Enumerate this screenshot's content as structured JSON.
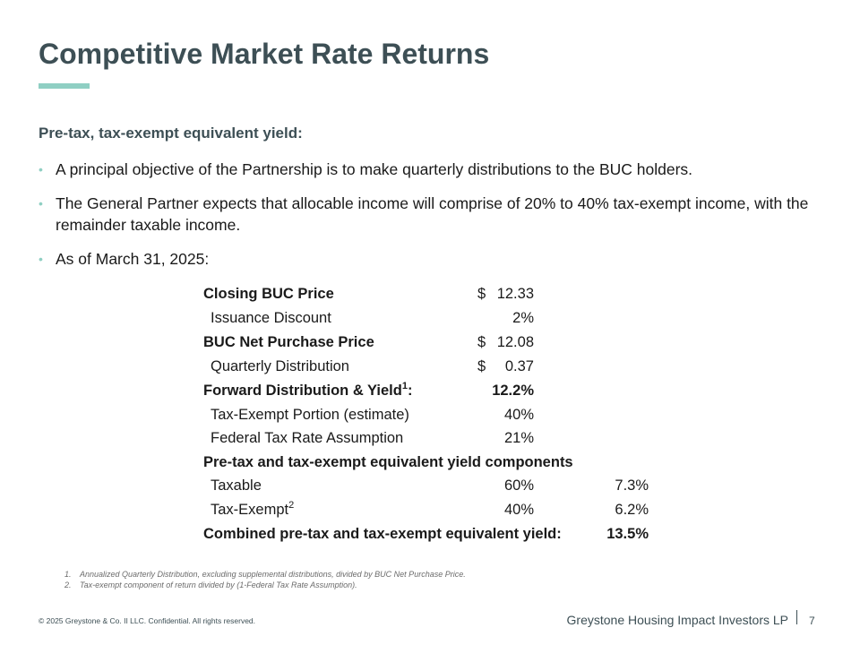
{
  "title": "Competitive Market Rate Returns",
  "accent_color": "#8fcfc3",
  "subheading": "Pre-tax, tax-exempt equivalent yield:",
  "bullets": [
    "A principal objective of the Partnership is to make quarterly distributions to the BUC holders.",
    "The General Partner expects that allocable income will comprise of 20% to 40% tax-exempt income, with the remainder taxable income.",
    "As of March 31, 2025:"
  ],
  "table": {
    "rows": [
      {
        "label": "Closing BUC Price",
        "cur": "$",
        "value": "12.33",
        "value3": ""
      },
      {
        "label": "Issuance Discount",
        "cur": "",
        "value": "2%",
        "value3": ""
      },
      {
        "label": "BUC Net Purchase Price",
        "cur": "$",
        "value": "12.08",
        "value3": ""
      },
      {
        "label": "Quarterly Distribution",
        "cur": "$",
        "value": "0.37",
        "value3": ""
      },
      {
        "label": "Forward Distribution & Yield",
        "sup": "1",
        "suffix": ":",
        "cur": "",
        "value": "12.2%",
        "value3": ""
      },
      {
        "label": "Tax-Exempt Portion (estimate)",
        "cur": "",
        "value": "40%",
        "value3": ""
      },
      {
        "label": "Federal Tax Rate Assumption",
        "cur": "",
        "value": "21%",
        "value3": ""
      },
      {
        "label": "Pre-tax and tax-exempt equivalent yield components",
        "cur": "",
        "value": "",
        "value3": ""
      },
      {
        "label": "Taxable",
        "cur": "",
        "value": "60%",
        "value3": "7.3%"
      },
      {
        "label": "Tax-Exempt",
        "sup": "2",
        "cur": "",
        "value": "40%",
        "value3": "6.2%"
      },
      {
        "label": "Combined pre-tax and tax-exempt equivalent yield:",
        "cur": "",
        "value": "",
        "value3": "13.5%"
      }
    ]
  },
  "footnotes": [
    {
      "num": "1.",
      "text": "Annualized Quarterly Distribution, excluding supplemental distributions, divided by BUC Net Purchase Price."
    },
    {
      "num": "2.",
      "text": "Tax-exempt component of return divided by (1-Federal Tax Rate Assumption)."
    }
  ],
  "footer": {
    "copyright": "© 2025 Greystone & Co. II LLC. Confidential. All rights reserved.",
    "company": "Greystone Housing Impact Investors LP",
    "page": "7"
  }
}
